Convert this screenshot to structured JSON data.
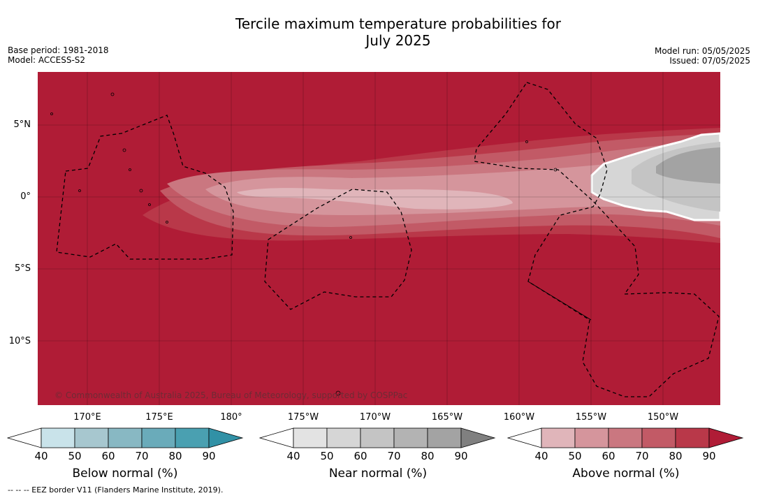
{
  "title_line1": "Tercile maximum temperature probabilities for",
  "title_line2": "July 2025",
  "base_period": "Base period: 1981-2018",
  "model": "Model: ACCESS-S2",
  "model_run": "Model run: 05/05/2025",
  "issued": "Issued: 07/05/2025",
  "copyright": "© Commonwealth of Australia 2025, Bureau of Meteorology, supported by COSPPac",
  "footer": "--  --  -- EEZ border V11 (Flanders Marine Institute, 2019).",
  "lat_labels": [
    "5°N",
    "0°",
    "5°S",
    "10°S"
  ],
  "lon_labels": [
    "170°E",
    "175°E",
    "180°",
    "175°W",
    "170°W",
    "165°W",
    "160°W",
    "155°W",
    "150°W"
  ],
  "colorbars": [
    {
      "title": "Below normal (%)",
      "ticks": [
        "40",
        "50",
        "60",
        "70",
        "80",
        "90"
      ],
      "colors": [
        "#c9e3ea",
        "#a7c7cf",
        "#88b8c3",
        "#6aabba",
        "#4aa0b1",
        "#3191a6"
      ]
    },
    {
      "title": "Near normal (%)",
      "ticks": [
        "40",
        "50",
        "60",
        "70",
        "80",
        "90"
      ],
      "colors": [
        "#e3e3e3",
        "#d6d6d6",
        "#c4c4c4",
        "#b3b3b3",
        "#a3a3a3",
        "#808080"
      ]
    },
    {
      "title": "Above normal (%)",
      "ticks": [
        "40",
        "50",
        "60",
        "70",
        "80",
        "90"
      ],
      "colors": [
        "#e0b5ba",
        "#d5959c",
        "#ca7780",
        "#c25a66",
        "#b93849",
        "#b01c36"
      ]
    }
  ],
  "colors": {
    "above_90": "#b01c36",
    "above_80": "#b93849",
    "above_70": "#c25a66",
    "above_60": "#ca7780",
    "above_50": "#d5959c",
    "near_50": "#d6d6d6",
    "near_60": "#c4c4c4",
    "near_80": "#a3a3a3"
  }
}
